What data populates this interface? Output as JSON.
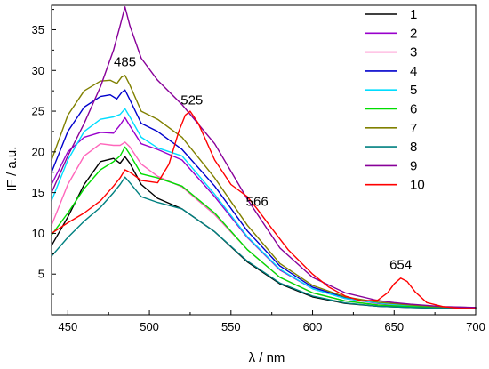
{
  "chart_data": {
    "type": "line",
    "xlabel": "λ / nm",
    "ylabel": "IF / a.u.",
    "xlim": [
      440,
      700
    ],
    "ylim": [
      0,
      38
    ],
    "x_ticks": [
      450,
      500,
      550,
      600,
      650,
      700
    ],
    "y_ticks": [
      5,
      10,
      15,
      20,
      25,
      30,
      35
    ],
    "grid": false,
    "legend_position": "top-right",
    "annotations": [
      {
        "text": "485",
        "x": 485,
        "y": 30.5
      },
      {
        "text": "525",
        "x": 526,
        "y": 25.8
      },
      {
        "text": "566",
        "x": 566,
        "y": 13.4
      },
      {
        "text": "654",
        "x": 654,
        "y": 5.6
      }
    ],
    "series": [
      {
        "name": "1",
        "color": "#000000",
        "points": [
          [
            440,
            8.5
          ],
          [
            450,
            12
          ],
          [
            460,
            16
          ],
          [
            470,
            18.8
          ],
          [
            478,
            19.2
          ],
          [
            482,
            18.6
          ],
          [
            485,
            19.4
          ],
          [
            488,
            18.6
          ],
          [
            495,
            16
          ],
          [
            505,
            14.3
          ],
          [
            520,
            13
          ],
          [
            540,
            10.2
          ],
          [
            560,
            6.5
          ],
          [
            580,
            3.8
          ],
          [
            600,
            2.2
          ],
          [
            620,
            1.4
          ],
          [
            640,
            1.05
          ],
          [
            660,
            0.9
          ],
          [
            680,
            0.8
          ],
          [
            700,
            0.8
          ]
        ]
      },
      {
        "name": "2",
        "color": "#9900CC",
        "points": [
          [
            440,
            16
          ],
          [
            450,
            20
          ],
          [
            460,
            21.8
          ],
          [
            470,
            22.4
          ],
          [
            478,
            22.3
          ],
          [
            482,
            23.3
          ],
          [
            485,
            24.2
          ],
          [
            488,
            23.2
          ],
          [
            495,
            21
          ],
          [
            505,
            20.3
          ],
          [
            520,
            19
          ],
          [
            540,
            14.5
          ],
          [
            560,
            9.5
          ],
          [
            580,
            5.5
          ],
          [
            600,
            3.2
          ],
          [
            620,
            2
          ],
          [
            640,
            1.4
          ],
          [
            660,
            1.1
          ],
          [
            680,
            0.9
          ],
          [
            700,
            0.9
          ]
        ]
      },
      {
        "name": "3",
        "color": "#FF66BB",
        "points": [
          [
            440,
            11
          ],
          [
            450,
            16
          ],
          [
            460,
            19.5
          ],
          [
            470,
            21
          ],
          [
            478,
            20.8
          ],
          [
            482,
            20.8
          ],
          [
            485,
            21.2
          ],
          [
            488,
            20.6
          ],
          [
            495,
            18.5
          ],
          [
            505,
            17
          ],
          [
            520,
            15.7
          ],
          [
            540,
            12.3
          ],
          [
            560,
            8
          ],
          [
            580,
            4.6
          ],
          [
            600,
            2.7
          ],
          [
            620,
            1.7
          ],
          [
            640,
            1.2
          ],
          [
            650,
            1.15
          ],
          [
            660,
            1.05
          ],
          [
            680,
            0.9
          ],
          [
            700,
            0.85
          ]
        ]
      },
      {
        "name": "4",
        "color": "#0000CC",
        "points": [
          [
            440,
            17.5
          ],
          [
            450,
            22.5
          ],
          [
            460,
            25.5
          ],
          [
            470,
            26.8
          ],
          [
            476,
            27
          ],
          [
            480,
            26.5
          ],
          [
            483,
            27.3
          ],
          [
            485,
            27.6
          ],
          [
            488,
            26.4
          ],
          [
            495,
            23.5
          ],
          [
            505,
            22.5
          ],
          [
            520,
            20.3
          ],
          [
            540,
            15.8
          ],
          [
            560,
            10.3
          ],
          [
            580,
            6
          ],
          [
            600,
            3.4
          ],
          [
            620,
            2.1
          ],
          [
            640,
            1.5
          ],
          [
            660,
            1.15
          ],
          [
            680,
            0.95
          ],
          [
            700,
            0.9
          ]
        ]
      },
      {
        "name": "5",
        "color": "#00DDFF",
        "points": [
          [
            440,
            14
          ],
          [
            450,
            19
          ],
          [
            460,
            22.5
          ],
          [
            470,
            24
          ],
          [
            478,
            24.3
          ],
          [
            482,
            24.6
          ],
          [
            485,
            25.3
          ],
          [
            488,
            24.3
          ],
          [
            495,
            21.8
          ],
          [
            505,
            20.5
          ],
          [
            520,
            19.5
          ],
          [
            540,
            14.8
          ],
          [
            560,
            9.6
          ],
          [
            580,
            5.6
          ],
          [
            600,
            3.2
          ],
          [
            620,
            2
          ],
          [
            640,
            1.45
          ],
          [
            660,
            1.1
          ],
          [
            680,
            0.95
          ],
          [
            700,
            0.9
          ]
        ]
      },
      {
        "name": "6",
        "color": "#00DD00",
        "points": [
          [
            440,
            9.8
          ],
          [
            450,
            12.5
          ],
          [
            460,
            15.5
          ],
          [
            470,
            17.8
          ],
          [
            478,
            18.8
          ],
          [
            482,
            19.5
          ],
          [
            485,
            20.6
          ],
          [
            488,
            19.7
          ],
          [
            495,
            17.3
          ],
          [
            505,
            16.8
          ],
          [
            520,
            15.8
          ],
          [
            540,
            12.5
          ],
          [
            560,
            8
          ],
          [
            580,
            4.6
          ],
          [
            600,
            2.7
          ],
          [
            620,
            1.7
          ],
          [
            640,
            1.2
          ],
          [
            660,
            1
          ],
          [
            680,
            0.85
          ],
          [
            700,
            0.85
          ]
        ]
      },
      {
        "name": "7",
        "color": "#808000",
        "points": [
          [
            440,
            19
          ],
          [
            450,
            24.5
          ],
          [
            460,
            27.5
          ],
          [
            470,
            28.7
          ],
          [
            476,
            28.8
          ],
          [
            480,
            28.4
          ],
          [
            483,
            29.2
          ],
          [
            485,
            29.4
          ],
          [
            488,
            28.2
          ],
          [
            495,
            25
          ],
          [
            505,
            24
          ],
          [
            520,
            21.8
          ],
          [
            540,
            16.8
          ],
          [
            560,
            11
          ],
          [
            580,
            6.3
          ],
          [
            600,
            3.6
          ],
          [
            620,
            2.2
          ],
          [
            640,
            1.55
          ],
          [
            660,
            1.2
          ],
          [
            680,
            0.95
          ],
          [
            700,
            0.9
          ]
        ]
      },
      {
        "name": "8",
        "color": "#008080",
        "points": [
          [
            440,
            7.2
          ],
          [
            450,
            9.5
          ],
          [
            460,
            11.5
          ],
          [
            470,
            13.2
          ],
          [
            478,
            15
          ],
          [
            482,
            16
          ],
          [
            485,
            16.9
          ],
          [
            488,
            16.2
          ],
          [
            495,
            14.5
          ],
          [
            505,
            13.8
          ],
          [
            520,
            13
          ],
          [
            540,
            10.2
          ],
          [
            560,
            6.6
          ],
          [
            580,
            3.9
          ],
          [
            600,
            2.3
          ],
          [
            620,
            1.45
          ],
          [
            640,
            1.05
          ],
          [
            660,
            0.9
          ],
          [
            680,
            0.8
          ],
          [
            700,
            0.8
          ]
        ]
      },
      {
        "name": "9",
        "color": "#880099",
        "points": [
          [
            440,
            15
          ],
          [
            450,
            19.5
          ],
          [
            460,
            23.5
          ],
          [
            470,
            28
          ],
          [
            478,
            32.5
          ],
          [
            482,
            35.5
          ],
          [
            485,
            37.8
          ],
          [
            488,
            35.5
          ],
          [
            495,
            31.5
          ],
          [
            505,
            28.8
          ],
          [
            520,
            25.8
          ],
          [
            540,
            21
          ],
          [
            560,
            14.2
          ],
          [
            580,
            8.2
          ],
          [
            600,
            4.6
          ],
          [
            620,
            2.7
          ],
          [
            640,
            1.75
          ],
          [
            650,
            1.5
          ],
          [
            660,
            1.3
          ],
          [
            680,
            1
          ],
          [
            700,
            0.9
          ]
        ]
      },
      {
        "name": "10",
        "color": "#FF0000",
        "points": [
          [
            440,
            10
          ],
          [
            450,
            11.3
          ],
          [
            460,
            12.5
          ],
          [
            470,
            14
          ],
          [
            478,
            15.8
          ],
          [
            482,
            16.8
          ],
          [
            485,
            17.8
          ],
          [
            488,
            17.5
          ],
          [
            495,
            16.5
          ],
          [
            505,
            16.2
          ],
          [
            512,
            18.5
          ],
          [
            518,
            22.5
          ],
          [
            522,
            24.5
          ],
          [
            525,
            25
          ],
          [
            530,
            23.5
          ],
          [
            540,
            19
          ],
          [
            550,
            16
          ],
          [
            560,
            14.5
          ],
          [
            566,
            13
          ],
          [
            575,
            10.6
          ],
          [
            585,
            8
          ],
          [
            600,
            5
          ],
          [
            610,
            3.4
          ],
          [
            620,
            2.3
          ],
          [
            630,
            1.7
          ],
          [
            640,
            1.8
          ],
          [
            646,
            2.7
          ],
          [
            650,
            3.8
          ],
          [
            654,
            4.5
          ],
          [
            658,
            4.1
          ],
          [
            663,
            2.8
          ],
          [
            670,
            1.5
          ],
          [
            680,
            1
          ],
          [
            690,
            0.8
          ],
          [
            700,
            0.75
          ]
        ]
      }
    ]
  }
}
